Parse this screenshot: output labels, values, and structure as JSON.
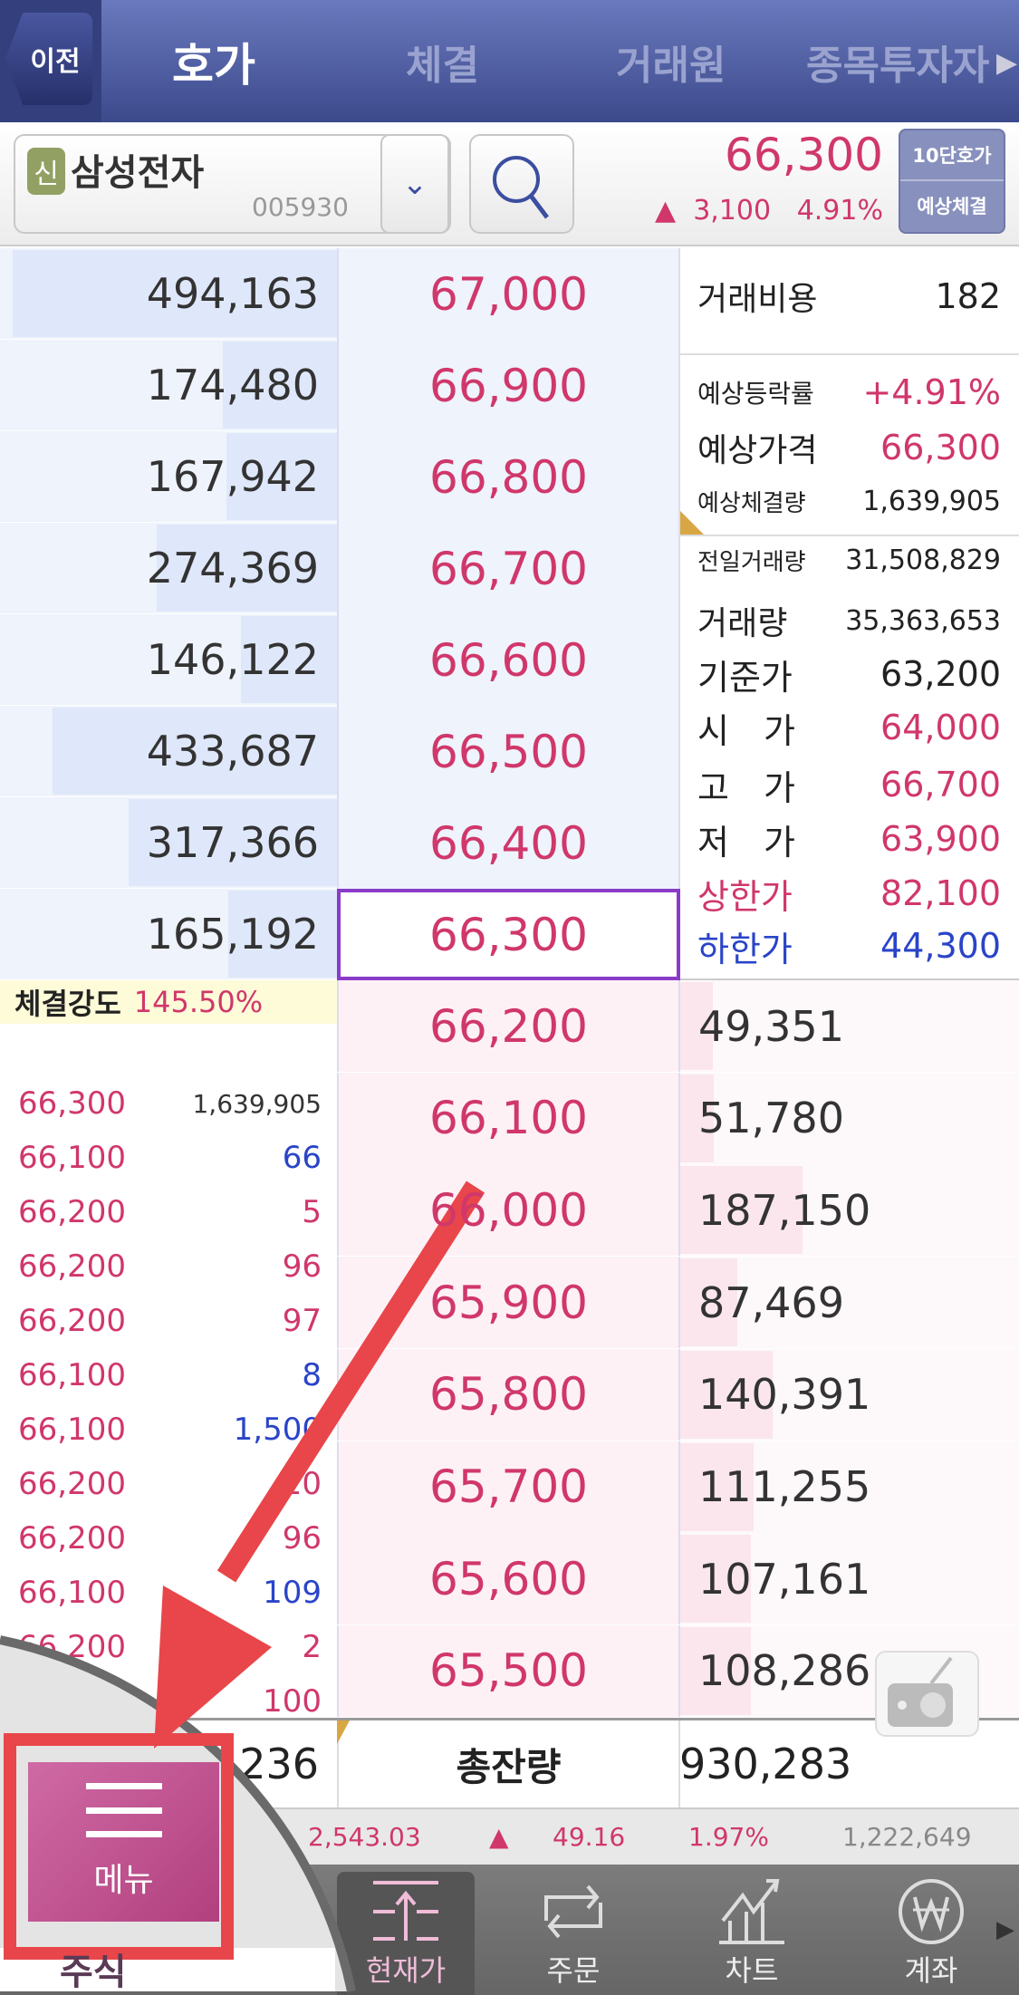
{
  "header": {
    "back": "이전",
    "tabs": [
      "호가",
      "체결",
      "거래원",
      "종목투자자"
    ],
    "active": 0
  },
  "stock": {
    "badge": "신",
    "name": "삼성전자",
    "code": "005930",
    "price": "66,300",
    "change_arrow": "▲",
    "change": "3,100",
    "change_pct": "4.91%",
    "btn_top": "10단호가",
    "btn_bottom": "예상체결"
  },
  "asks": [
    {
      "qty": "494,163",
      "price": "67,000",
      "v": 494163
    },
    {
      "qty": "174,480",
      "price": "66,900",
      "v": 174480
    },
    {
      "qty": "167,942",
      "price": "66,800",
      "v": 167942
    },
    {
      "qty": "274,369",
      "price": "66,700",
      "v": 274369
    },
    {
      "qty": "146,122",
      "price": "66,600",
      "v": 146122
    },
    {
      "qty": "433,687",
      "price": "66,500",
      "v": 433687
    },
    {
      "qty": "317,366",
      "price": "66,400",
      "v": 317366
    },
    {
      "qty": "165,192",
      "price": "66,300",
      "v": 165192
    }
  ],
  "bids": [
    {
      "qty": "49,351",
      "price": "66,200",
      "v": 49351
    },
    {
      "qty": "51,780",
      "price": "66,100",
      "v": 51780
    },
    {
      "qty": "187,150",
      "price": "66,000",
      "v": 187150
    },
    {
      "qty": "87,469",
      "price": "65,900",
      "v": 87469
    },
    {
      "qty": "140,391",
      "price": "65,800",
      "v": 140391
    },
    {
      "qty": "111,255",
      "price": "65,700",
      "v": 111255
    },
    {
      "qty": "107,161",
      "price": "65,600",
      "v": 107161
    },
    {
      "qty": "108,286",
      "price": "65,500",
      "v": 108286
    }
  ],
  "info": [
    {
      "label": "거래비용",
      "value": "182",
      "lc": "",
      "vc": ""
    },
    {
      "label": "예상등락률",
      "value": "+4.91%",
      "lc": "",
      "vc": "red"
    },
    {
      "label": "예상가격",
      "value": "66,300",
      "lc": "",
      "vc": "red"
    },
    {
      "label": "예상체결량",
      "value": "1,639,905",
      "lc": "",
      "vc": ""
    },
    {
      "label": "전일거래량",
      "value": "31,508,829",
      "lc": "",
      "vc": ""
    },
    {
      "label": "거래량",
      "value": "35,363,653",
      "lc": "",
      "vc": ""
    },
    {
      "label": "기준가",
      "value": "63,200",
      "lc": "",
      "vc": ""
    },
    {
      "label": "시　가",
      "value": "64,000",
      "lc": "",
      "vc": "red"
    },
    {
      "label": "고　가",
      "value": "66,700",
      "lc": "",
      "vc": "red"
    },
    {
      "label": "저　가",
      "value": "63,900",
      "lc": "",
      "vc": "red"
    },
    {
      "label": "상한가",
      "value": "82,100",
      "lc": "red",
      "vc": "red"
    },
    {
      "label": "하한가",
      "value": "44,300",
      "lc": "blue",
      "vc": "blue"
    }
  ],
  "strength": {
    "label": "체결강도",
    "value": "145.50%"
  },
  "trades": [
    {
      "p": "66,300",
      "q": "1,639,905",
      "c": ""
    },
    {
      "p": "66,100",
      "q": "66",
      "c": "blue"
    },
    {
      "p": "66,200",
      "q": "5",
      "c": "red"
    },
    {
      "p": "66,200",
      "q": "96",
      "c": "red"
    },
    {
      "p": "66,200",
      "q": "97",
      "c": "red"
    },
    {
      "p": "66,100",
      "q": "8",
      "c": "blue"
    },
    {
      "p": "66,100",
      "q": "1,500",
      "c": "blue"
    },
    {
      "p": "66,200",
      "q": "20",
      "c": "red"
    },
    {
      "p": "66,200",
      "q": "96",
      "c": "red"
    },
    {
      "p": "66,100",
      "q": "109",
      "c": "blue"
    },
    {
      "p": "66,200",
      "q": "2",
      "c": "red"
    },
    {
      "p": "",
      "q": "100",
      "c": "red"
    }
  ],
  "total": {
    "left": "236",
    "label": "총잔량",
    "right": "930,283"
  },
  "index": {
    "value": "2,543.03",
    "arrow": "▲",
    "change": "49.16",
    "pct": "1.97%",
    "volume": "1,222,649"
  },
  "bottom_tabs": [
    "현재가",
    "주문",
    "차트",
    "계좌"
  ],
  "menu": {
    "label": "메뉴",
    "side_tab": "주식"
  },
  "colors": {
    "up": "#d0376a",
    "down": "#2a44c8",
    "header": "#4a5aa0",
    "annotation": "#e8464a"
  }
}
